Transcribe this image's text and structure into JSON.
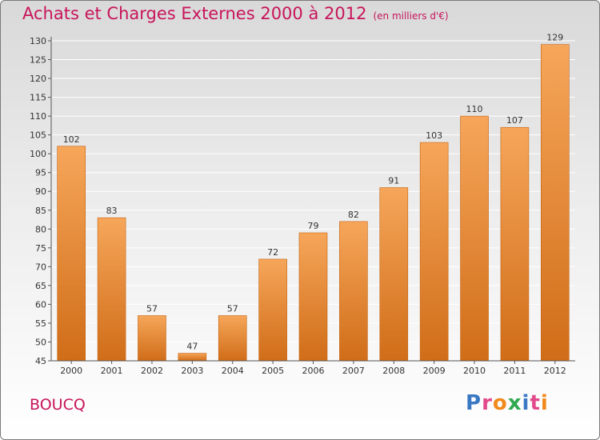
{
  "header": {
    "title": "Achats et Charges Externes 2000 à 2012",
    "subtitle": "(en milliers d'€)"
  },
  "commune": "BOUCQ",
  "logo": {
    "text": "Proxiti",
    "colors": [
      "#3a78c4",
      "#e24a8b",
      "#f08a1c",
      "#2fa84f",
      "#3a78c4",
      "#e24a8b",
      "#f08a1c"
    ]
  },
  "colors": {
    "bar_light": "#f6a65a",
    "bar_dark": "#d06d18",
    "accent": "#c8145a",
    "grid": "#ffffff",
    "axis": "#555555"
  },
  "chart_data": {
    "type": "bar",
    "categories": [
      "2000",
      "2001",
      "2002",
      "2003",
      "2004",
      "2005",
      "2006",
      "2007",
      "2008",
      "2009",
      "2010",
      "2011",
      "2012"
    ],
    "values": [
      102,
      83,
      57,
      47,
      57,
      72,
      79,
      82,
      91,
      103,
      110,
      107,
      129
    ],
    "ylim": [
      45,
      130
    ],
    "yticks": [
      45,
      50,
      55,
      60,
      65,
      70,
      75,
      80,
      85,
      90,
      95,
      100,
      105,
      110,
      115,
      120,
      125,
      130
    ],
    "grid": true,
    "data_labels": true
  }
}
